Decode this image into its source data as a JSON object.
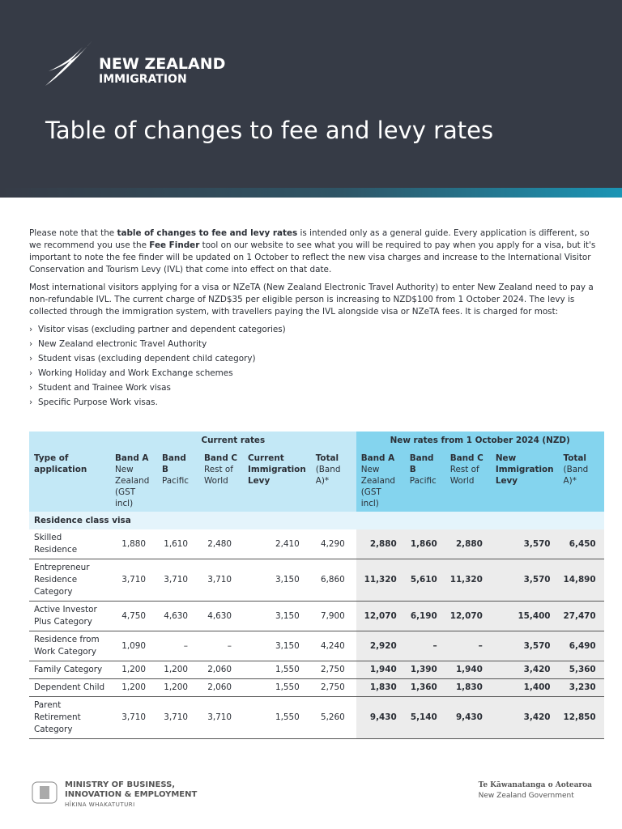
{
  "header": {
    "brand": [
      "NEW ZEALAND",
      "IMMIGRATION"
    ],
    "title": "Table of changes to fee and levy rates"
  },
  "intro": [
    [
      "Please note that the ",
      "table of changes to fee and levy rates",
      " is intended only as a general guide. Every application is different, so we recommend you use the ",
      "Fee Finder",
      " tool on our website to see what you will be required to pay when you apply for a visa, but it's important to note the fee finder will be updated on 1 October to reflect the new visa charges and increase to the International Visitor Conservation and Tourism Levy (IVL) that come into effect on that date."
    ],
    [
      "Most international visitors applying for a visa or NZeTA (New Zealand Electronic Travel Authority) to enter New Zealand need to pay a non-refundable IVL. The current charge of NZD$35 per eligible person is increasing to NZD$100 from 1 October 2024. The levy is collected through the immigration system, with travellers paying the IVL alongside visa or NZeTA fees. It is charged for most:"
    ]
  ],
  "bullets": [
    "Visitor visas (excluding partner and dependent categories)",
    "New Zealand electronic Travel Authority",
    "Student visas (excluding dependent child category)",
    "Working Holiday and Work Exchange schemes",
    "Student and Trainee Work visas",
    "Specific Purpose Work visas."
  ],
  "table": {
    "groups": [
      "Current rates",
      "New rates from 1 October 2024 (NZD)"
    ],
    "columns": [
      {
        "title": "Type of application"
      },
      {
        "title": "Band A",
        "sub": "New Zealand (GST incl)"
      },
      {
        "title": "Band B",
        "sub": "Pacific"
      },
      {
        "title": "Band C",
        "sub": "Rest of World"
      },
      {
        "title": "Current Immigration Levy"
      },
      {
        "title": "Total",
        "sub": "(Band A)*"
      },
      {
        "title": "Band A",
        "sub": "New Zealand (GST incl)"
      },
      {
        "title": "Band B",
        "sub": "Pacific"
      },
      {
        "title": "Band C",
        "sub": "Rest of World"
      },
      {
        "title": "New Immigration Levy"
      },
      {
        "title": "Total",
        "sub": "(Band A)*"
      }
    ],
    "section": "Residence class visa",
    "rows": [
      [
        "Skilled Residence",
        "1,880",
        "1,610",
        "2,480",
        "2,410",
        "4,290",
        "2,880",
        "1,860",
        "2,880",
        "3,570",
        "6,450"
      ],
      [
        "Entrepreneur Residence Category",
        "3,710",
        "3,710",
        "3,710",
        "3,150",
        "6,860",
        "11,320",
        "5,610",
        "11,320",
        "3,570",
        "14,890"
      ],
      [
        "Active Investor Plus Category",
        "4,750",
        "4,630",
        "4,630",
        "3,150",
        "7,900",
        "12,070",
        "6,190",
        "12,070",
        "15,400",
        "27,470"
      ],
      [
        "Residence from Work Category",
        "1,090",
        "–",
        "–",
        "3,150",
        "4,240",
        "2,920",
        "–",
        "–",
        "3,570",
        "6,490"
      ],
      [
        "Family Category",
        "1,200",
        "1,200",
        "2,060",
        "1,550",
        "2,750",
        "1,940",
        "1,390",
        "1,940",
        "3,420",
        "5,360"
      ],
      [
        "Dependent Child",
        "1,200",
        "1,200",
        "2,060",
        "1,550",
        "2,750",
        "1,830",
        "1,360",
        "1,830",
        "1,400",
        "3,230"
      ],
      [
        "Parent Retirement Category",
        "3,710",
        "3,710",
        "3,710",
        "1,550",
        "5,260",
        "9,430",
        "5,140",
        "9,430",
        "3,420",
        "12,850"
      ]
    ]
  },
  "footer": {
    "ministry": [
      "MINISTRY OF BUSINESS,",
      "INNOVATION & EMPLOYMENT",
      "HĪKINA WHAKATUTURI"
    ],
    "government": [
      "Te Kāwanatanga o Aotearoa",
      "New Zealand Government"
    ]
  }
}
